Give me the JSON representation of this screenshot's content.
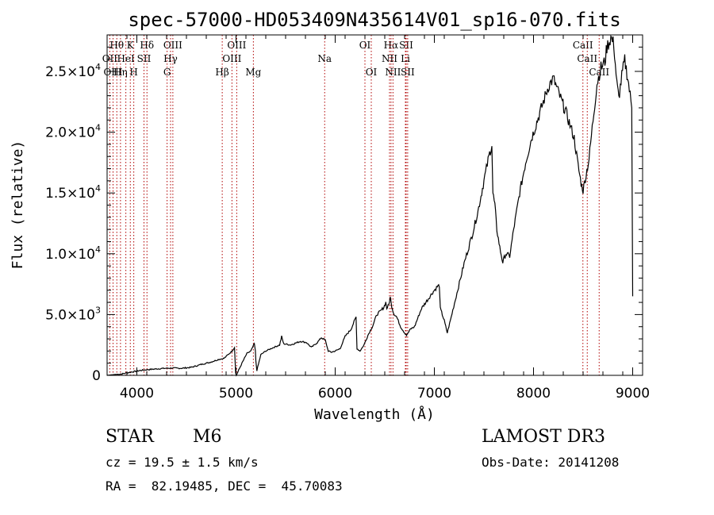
{
  "chart_data": {
    "type": "line",
    "title": "spec-57000-HD053409N435614V01_sp16-070.fits",
    "xlabel": "Wavelength (Å)",
    "ylabel": "Flux (relative)",
    "xlim": [
      3700,
      9100
    ],
    "ylim": [
      0,
      28000
    ],
    "x_ticks": [
      4000,
      5000,
      6000,
      7000,
      8000,
      9000
    ],
    "x_tick_labels": [
      "4000",
      "5000",
      "6000",
      "7000",
      "8000",
      "9000"
    ],
    "y_ticks": [
      {
        "value": 0,
        "mantissa": "0",
        "exponent": ""
      },
      {
        "value": 5000,
        "mantissa": "5.0×10",
        "exponent": "3"
      },
      {
        "value": 10000,
        "mantissa": "1.0×10",
        "exponent": "4"
      },
      {
        "value": 15000,
        "mantissa": "1.5×10",
        "exponent": "4"
      },
      {
        "value": 20000,
        "mantissa": "2.0×10",
        "exponent": "4"
      },
      {
        "value": 25000,
        "mantissa": "2.5×10",
        "exponent": "4"
      }
    ],
    "series": [
      {
        "name": "flux",
        "color": "#000000",
        "points": [
          [
            3700,
            0
          ],
          [
            3760,
            50
          ],
          [
            3850,
            120
          ],
          [
            3950,
            280
          ],
          [
            4050,
            420
          ],
          [
            4150,
            500
          ],
          [
            4250,
            560
          ],
          [
            4350,
            600
          ],
          [
            4450,
            580
          ],
          [
            4550,
            660
          ],
          [
            4650,
            900
          ],
          [
            4750,
            1100
          ],
          [
            4820,
            1300
          ],
          [
            4880,
            1400
          ],
          [
            4920,
            1700
          ],
          [
            4960,
            2000
          ],
          [
            4985,
            2300
          ],
          [
            4992,
            1000
          ],
          [
            4996,
            200
          ],
          [
            5003,
            0
          ],
          [
            5060,
            1000
          ],
          [
            5110,
            1800
          ],
          [
            5150,
            2000
          ],
          [
            5185,
            2600
          ],
          [
            5195,
            2000
          ],
          [
            5200,
            1200
          ],
          [
            5210,
            400
          ],
          [
            5250,
            1700
          ],
          [
            5300,
            2000
          ],
          [
            5380,
            2300
          ],
          [
            5440,
            2500
          ],
          [
            5460,
            3200
          ],
          [
            5480,
            2600
          ],
          [
            5550,
            2500
          ],
          [
            5650,
            2800
          ],
          [
            5710,
            2700
          ],
          [
            5760,
            2300
          ],
          [
            5820,
            2700
          ],
          [
            5860,
            3100
          ],
          [
            5900,
            2900
          ],
          [
            5930,
            2000
          ],
          [
            5960,
            1900
          ],
          [
            6000,
            2000
          ],
          [
            6050,
            2200
          ],
          [
            6100,
            3200
          ],
          [
            6160,
            3800
          ],
          [
            6190,
            4400
          ],
          [
            6210,
            4800
          ],
          [
            6220,
            2200
          ],
          [
            6250,
            2000
          ],
          [
            6290,
            2500
          ],
          [
            6330,
            3300
          ],
          [
            6380,
            4100
          ],
          [
            6420,
            5000
          ],
          [
            6460,
            5300
          ],
          [
            6490,
            5600
          ],
          [
            6510,
            6000
          ],
          [
            6520,
            5500
          ],
          [
            6540,
            5800
          ],
          [
            6555,
            6400
          ],
          [
            6570,
            5700
          ],
          [
            6590,
            5100
          ],
          [
            6620,
            4800
          ],
          [
            6660,
            4000
          ],
          [
            6700,
            3500
          ],
          [
            6720,
            3300
          ],
          [
            6760,
            3800
          ],
          [
            6800,
            4000
          ],
          [
            6870,
            5500
          ],
          [
            6930,
            6200
          ],
          [
            6990,
            6900
          ],
          [
            7030,
            7300
          ],
          [
            7050,
            7400
          ],
          [
            7060,
            5500
          ],
          [
            7080,
            5000
          ],
          [
            7100,
            4500
          ],
          [
            7130,
            3500
          ],
          [
            7170,
            4800
          ],
          [
            7220,
            6500
          ],
          [
            7300,
            9200
          ],
          [
            7380,
            11500
          ],
          [
            7440,
            13500
          ],
          [
            7500,
            16000
          ],
          [
            7550,
            18000
          ],
          [
            7580,
            19000
          ],
          [
            7590,
            15000
          ],
          [
            7610,
            14000
          ],
          [
            7630,
            12000
          ],
          [
            7660,
            10500
          ],
          [
            7690,
            9300
          ],
          [
            7720,
            10000
          ],
          [
            7760,
            9800
          ],
          [
            7800,
            12000
          ],
          [
            7860,
            15000
          ],
          [
            7920,
            17500
          ],
          [
            7980,
            19500
          ],
          [
            8040,
            21000
          ],
          [
            8100,
            22500
          ],
          [
            8150,
            23800
          ],
          [
            8200,
            24400
          ],
          [
            8240,
            23500
          ],
          [
            8290,
            22400
          ],
          [
            8320,
            21800
          ],
          [
            8360,
            20800
          ],
          [
            8410,
            19500
          ],
          [
            8450,
            17200
          ],
          [
            8480,
            15800
          ],
          [
            8500,
            15200
          ],
          [
            8530,
            16500
          ],
          [
            8560,
            17800
          ],
          [
            8600,
            21000
          ],
          [
            8640,
            24000
          ],
          [
            8680,
            25300
          ],
          [
            8720,
            25800
          ],
          [
            8740,
            27000
          ],
          [
            8780,
            27800
          ],
          [
            8810,
            27200
          ],
          [
            8840,
            24000
          ],
          [
            8860,
            22800
          ],
          [
            8890,
            24600
          ],
          [
            8920,
            25900
          ],
          [
            8950,
            24500
          ],
          [
            8990,
            22000
          ],
          [
            9000,
            6500
          ]
        ]
      }
    ],
    "emission_lines": [
      {
        "label": "Hθ",
        "wavelength": 3798,
        "row": 0
      },
      {
        "label": "OII",
        "wavelength": 3727,
        "row": 1
      },
      {
        "label": "OIII",
        "wavelength": 3760,
        "row": 2
      },
      {
        "label": "K",
        "wavelength": 3934,
        "row": 0
      },
      {
        "label": "HeI",
        "wavelength": 3889,
        "row": 1
      },
      {
        "label": "Hη",
        "wavelength": 3835,
        "row": 2
      },
      {
        "label": "H",
        "wavelength": 3969,
        "row": 2
      },
      {
        "label": "Hδ",
        "wavelength": 4102,
        "row": 0
      },
      {
        "label": "SII",
        "wavelength": 4072,
        "row": 1
      },
      {
        "label": "OIII",
        "wavelength": 4363,
        "row": 0
      },
      {
        "label": "Hγ",
        "wavelength": 4340,
        "row": 1
      },
      {
        "label": "G",
        "wavelength": 4305,
        "row": 2
      },
      {
        "label": "OIII",
        "wavelength": 5007,
        "row": 0
      },
      {
        "label": "OIII",
        "wavelength": 4959,
        "row": 1
      },
      {
        "label": "Hβ",
        "wavelength": 4861,
        "row": 2
      },
      {
        "label": "Mg",
        "wavelength": 5175,
        "row": 2
      },
      {
        "label": "Na",
        "wavelength": 5894,
        "row": 1
      },
      {
        "label": "OI",
        "wavelength": 6300,
        "row": 0
      },
      {
        "label": "OI",
        "wavelength": 6364,
        "row": 2
      },
      {
        "label": "Hα",
        "wavelength": 6563,
        "row": 0
      },
      {
        "label": "SII",
        "wavelength": 6716,
        "row": 0
      },
      {
        "label": "NII",
        "wavelength": 6548,
        "row": 1
      },
      {
        "label": "Li",
        "wavelength": 6708,
        "row": 1
      },
      {
        "label": "NII",
        "wavelength": 6583,
        "row": 2
      },
      {
        "label": "SII",
        "wavelength": 6731,
        "row": 2
      },
      {
        "label": "CaII",
        "wavelength": 8498,
        "row": 0
      },
      {
        "label": "CaII",
        "wavelength": 8542,
        "row": 1
      },
      {
        "label": "CaII",
        "wavelength": 8662,
        "row": 2
      }
    ],
    "marker_line_color": "#b00000"
  },
  "footer": {
    "object_class": "STAR",
    "subclass": "M6",
    "survey": "LAMOST DR3",
    "redshift": "cz = 19.5 ± 1.5 km/s",
    "obs_date": "Obs-Date: 20141208",
    "coordinates": "RA =  82.19485, DEC =  45.70083"
  }
}
